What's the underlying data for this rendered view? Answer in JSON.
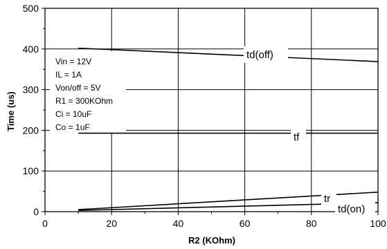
{
  "chart_data": {
    "type": "line",
    "xlabel": "R2 (KOhm)",
    "ylabel": "Time (us)",
    "xlim": [
      0,
      100
    ],
    "ylim": [
      0,
      500
    ],
    "x_ticks": [
      "0",
      "20",
      "40",
      "60",
      "80",
      "100"
    ],
    "y_ticks": [
      "0",
      "100",
      "200",
      "300",
      "400",
      "500"
    ],
    "grid": true,
    "conditions": [
      "Vin = 12V",
      "IL = 1A",
      "Von/off = 5V",
      "R1 = 300KOhm",
      "Ci = 10uF",
      "Co = 1uF"
    ],
    "series": [
      {
        "name": "td(off)",
        "x": [
          10,
          100
        ],
        "y": [
          402,
          369
        ]
      },
      {
        "name": "tf",
        "x": [
          10,
          100
        ],
        "y": [
          193,
          193
        ]
      },
      {
        "name": "tr",
        "x": [
          10,
          100
        ],
        "y": [
          5,
          48
        ]
      },
      {
        "name": "td(on)",
        "x": [
          10,
          100
        ],
        "y": [
          3,
          22
        ]
      }
    ]
  }
}
